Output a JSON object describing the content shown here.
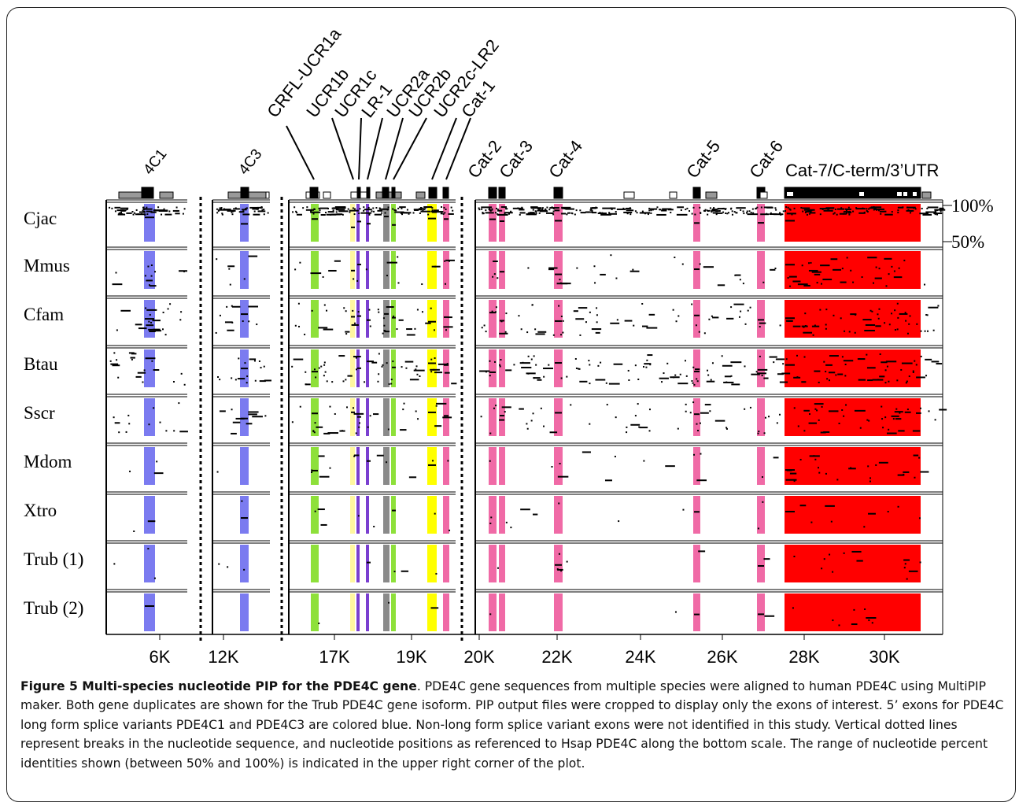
{
  "chart_data": {
    "type": "scatter",
    "title": "",
    "xlabel": "",
    "ylabel": "",
    "ylim": [
      50,
      100
    ],
    "y_ticks": [
      "100%",
      "50%"
    ],
    "x_ticks": [
      "6K",
      "12K",
      "17K",
      "19K",
      "20K",
      "22K",
      "24K",
      "26K",
      "28K",
      "30K"
    ],
    "grid": false,
    "segments": [
      {
        "name": "4C1",
        "features": [
          "4C1"
        ]
      },
      {
        "name": "4C3",
        "features": [
          "4C3"
        ]
      },
      {
        "name": "UCR",
        "features": [
          "CRFL-UCR1a",
          "UCR1b",
          "UCR1c",
          "LR-1",
          "UCR2a",
          "UCR2b",
          "UCR2c-LR2",
          "Cat-1"
        ]
      },
      {
        "name": "Cat",
        "features": [
          "Cat-2",
          "Cat-3",
          "Cat-4",
          "Cat-5",
          "Cat-6",
          "Cat-7/C-term/3’UTR"
        ]
      }
    ],
    "exon_labels": [
      "4C1",
      "4C3",
      "CRFL-UCR1a",
      "UCR1b",
      "UCR1c",
      "LR-1",
      "UCR2a",
      "UCR2b",
      "UCR2c-LR2",
      "Cat-1",
      "Cat-2",
      "Cat-3",
      "Cat-4",
      "Cat-5",
      "Cat-6",
      "Cat-7/C-term/3’UTR"
    ],
    "species": [
      "Cjac",
      "Mmus",
      "Cfam",
      "Btau",
      "Sscr",
      "Mdom",
      "Xtro",
      "Trub (1)",
      "Trub (2)"
    ],
    "exon_colors": {
      "4C": "#7b7bf0",
      "UCR1a": "#8ee03a",
      "UCR1b": "#fff7a0",
      "UCR1c": "#7a3fd0",
      "LR-1": "#7a3fd0",
      "UCR2a": "#8a8a8a",
      "UCR2b": "#8ee03a",
      "UCR2c-LR2": "#ffff00",
      "Cat": "#f06aa6",
      "Cat-7": "#ff0000"
    },
    "pip_density": [
      0.95,
      0.35,
      0.55,
      0.6,
      0.45,
      0.2,
      0.15,
      0.12,
      0.12
    ]
  },
  "caption": {
    "title": "Figure 5 Multi-species nucleotide PIP for the PDE4C gene",
    "text": ". PDE4C gene sequences from multiple species were aligned to human PDE4C using MultiPIP maker. Both gene duplicates are shown for the Trub PDE4C gene isoform. PIP output files were cropped to display only the exons of interest. 5’ exons for PDE4C long form splice variants PDE4C1 and PDE4C3 are colored blue. Non-long form splice variant exons were not identified in this study. Vertical dotted lines represent breaks in the nucleotide sequence, and nucleotide positions as referenced to Hsap PDE4C along the bottom scale. The range of nucleotide percent identities shown (between 50% and 100%) is indicated in the upper right corner of the plot."
  }
}
